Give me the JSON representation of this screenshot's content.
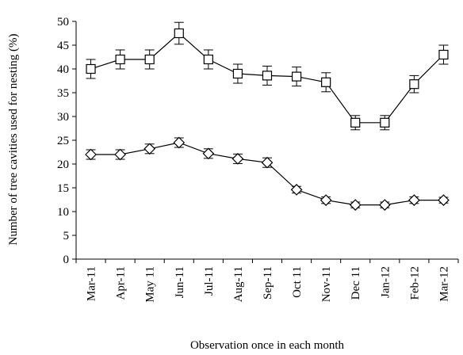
{
  "chart_data": {
    "type": "line",
    "title": "",
    "xlabel": "Observation once in each month",
    "ylabel": "Number of tree cavities used for nesting (%)",
    "ylim": [
      0,
      50
    ],
    "yticks": [
      0,
      5,
      10,
      15,
      20,
      25,
      30,
      35,
      40,
      45,
      50
    ],
    "grid": false,
    "categories": [
      "Mar-11",
      "Apr-11",
      "May 11",
      "Jun-11",
      "Jul-11",
      "Aug-11",
      "Sep-11",
      "Oct 11",
      "Nov-11",
      "Dec 11",
      "Jan-12",
      "Feb-12",
      "Mar-12"
    ],
    "series": [
      {
        "marker": "square",
        "values": [
          40.0,
          42.0,
          42.0,
          47.5,
          42.0,
          39.0,
          38.6,
          38.4,
          37.2,
          28.7,
          28.7,
          36.8,
          43.0
        ],
        "error": [
          2.0,
          2.0,
          2.0,
          2.3,
          2.0,
          2.0,
          2.0,
          2.0,
          2.0,
          1.5,
          1.5,
          1.8,
          2.0
        ]
      },
      {
        "marker": "diamond",
        "values": [
          22.0,
          22.0,
          23.2,
          24.5,
          22.2,
          21.1,
          20.3,
          14.6,
          12.4,
          11.4,
          11.4,
          12.4,
          12.4
        ],
        "error": [
          1.0,
          1.0,
          1.0,
          1.0,
          1.0,
          1.0,
          1.0,
          0.7,
          0.7,
          0.6,
          0.6,
          0.7,
          0.6
        ]
      }
    ]
  }
}
